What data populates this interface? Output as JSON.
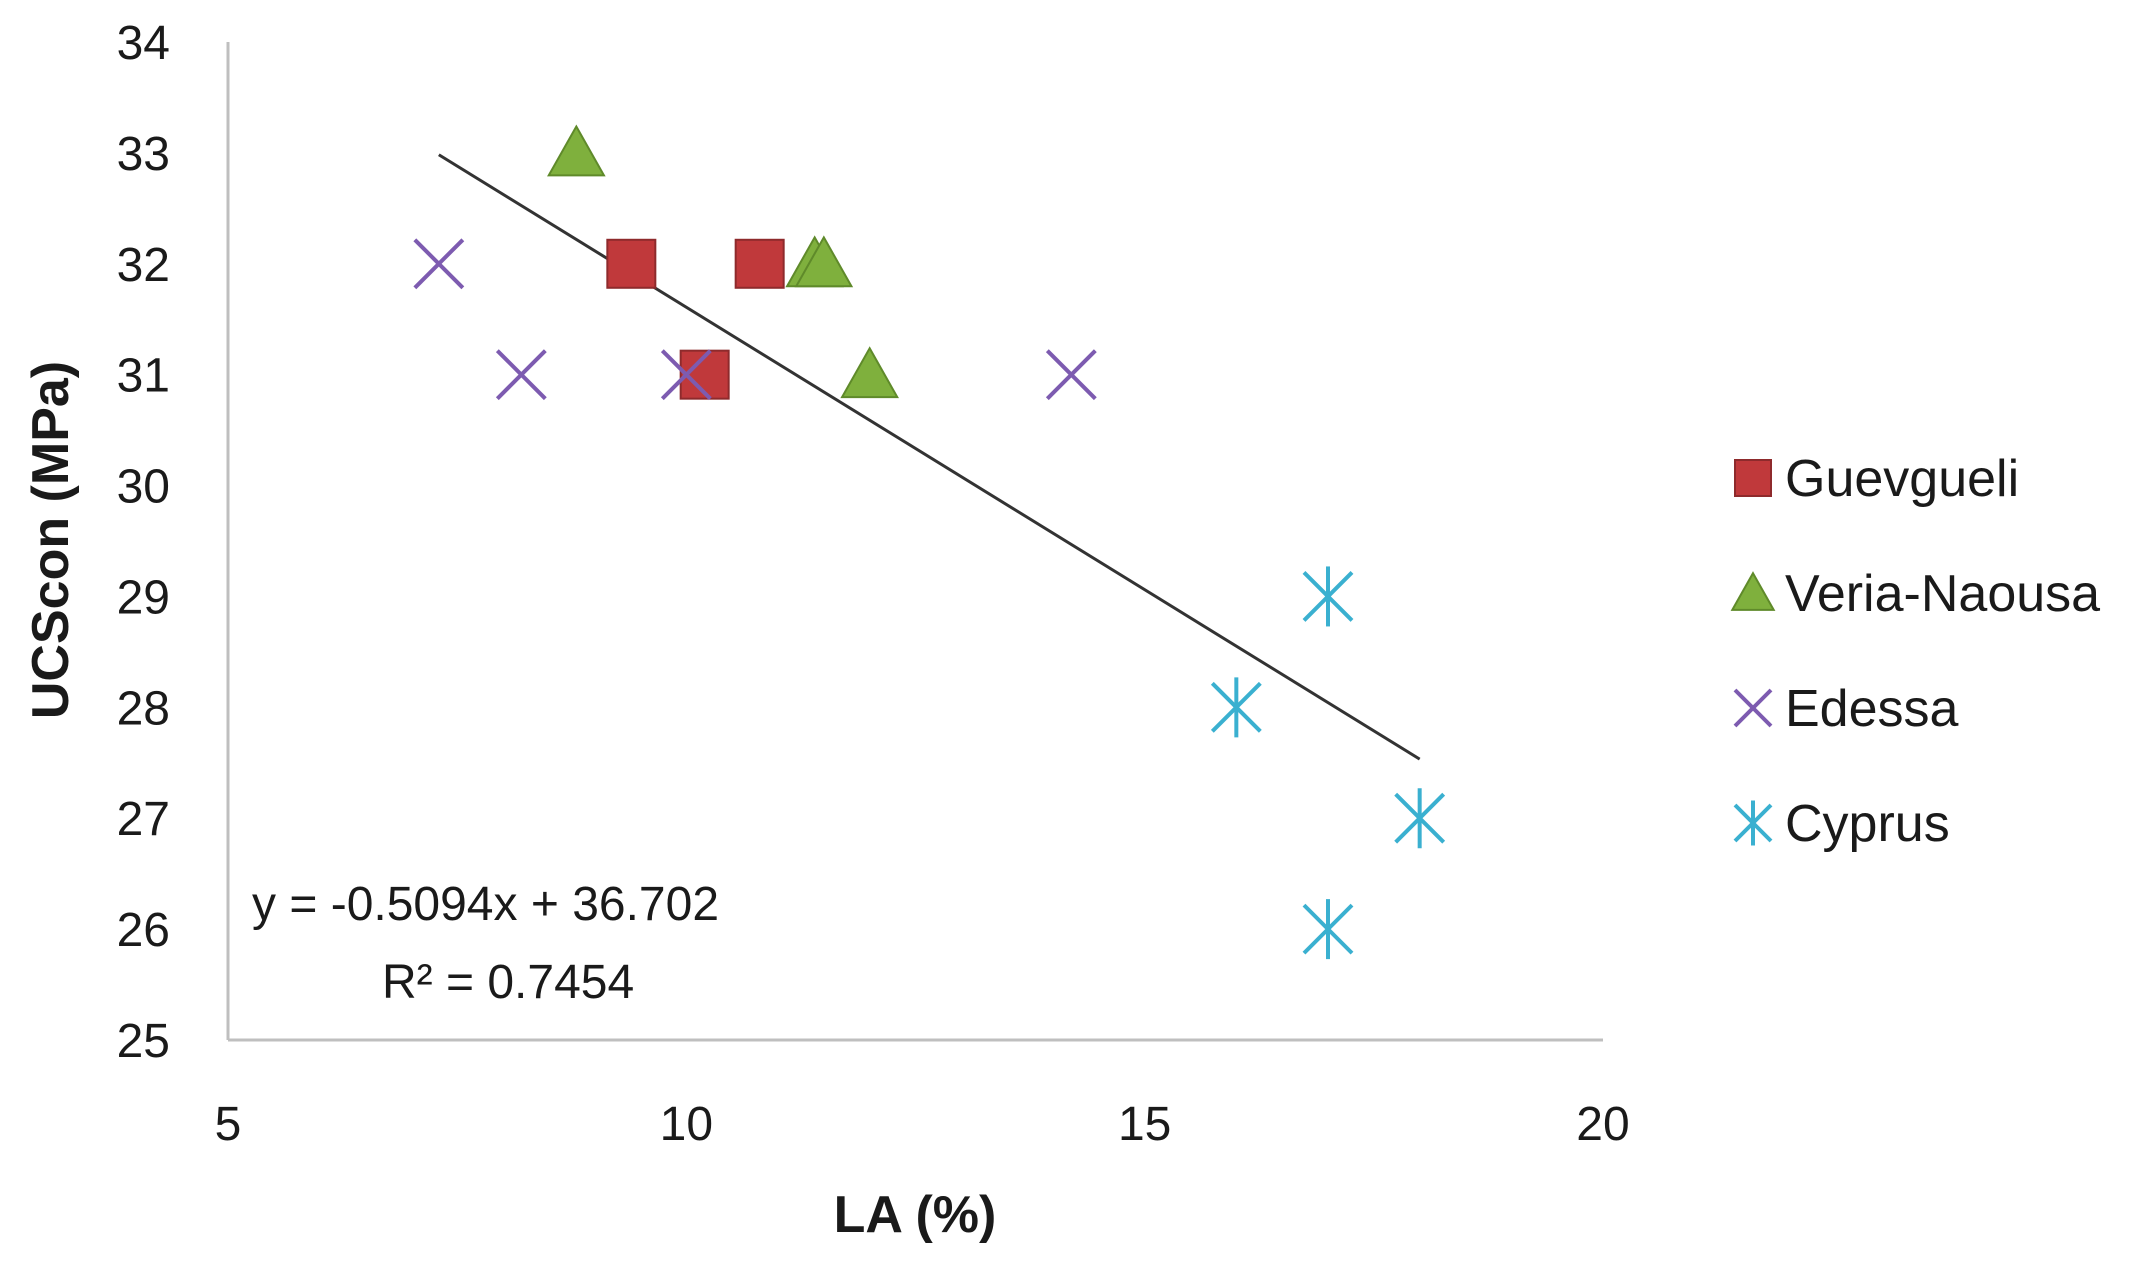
{
  "chart_data": {
    "type": "scatter",
    "title": "",
    "xlabel": "LA (%)",
    "ylabel": "UCScon (MPa)",
    "xlim": [
      5,
      20
    ],
    "ylim": [
      25,
      34
    ],
    "x_ticks": [
      5,
      10,
      15,
      20
    ],
    "y_ticks": [
      25,
      26,
      27,
      28,
      29,
      30,
      31,
      32,
      33,
      34
    ],
    "grid": false,
    "legend_position": "right",
    "series": [
      {
        "name": "Guevgueli",
        "marker": "square",
        "color": "#c0393b",
        "points": [
          [
            9.4,
            32
          ],
          [
            10.8,
            32
          ],
          [
            10.2,
            31
          ]
        ]
      },
      {
        "name": "Veria-Naousa",
        "marker": "triangle",
        "color": "#7fb03d",
        "points": [
          [
            8.8,
            33
          ],
          [
            11.4,
            32
          ],
          [
            11.5,
            32
          ],
          [
            12.0,
            31
          ]
        ]
      },
      {
        "name": "Edessa",
        "marker": "x",
        "color": "#7d5bb0",
        "points": [
          [
            7.3,
            32
          ],
          [
            8.2,
            31
          ],
          [
            10.0,
            31
          ],
          [
            14.2,
            31
          ]
        ]
      },
      {
        "name": "Cyprus",
        "marker": "asterisk",
        "color": "#3ab0d0",
        "points": [
          [
            17.0,
            29
          ],
          [
            16.0,
            28
          ],
          [
            18.0,
            27
          ],
          [
            17.0,
            26
          ]
        ]
      }
    ],
    "trendline": {
      "slope": -0.5094,
      "intercept": 36.702,
      "x_range": [
        7.3,
        18.0
      ],
      "color": "#333333"
    },
    "annotations": {
      "equation": "y = -0.5094x + 36.702",
      "r_squared": "R² = 0.7454"
    }
  }
}
